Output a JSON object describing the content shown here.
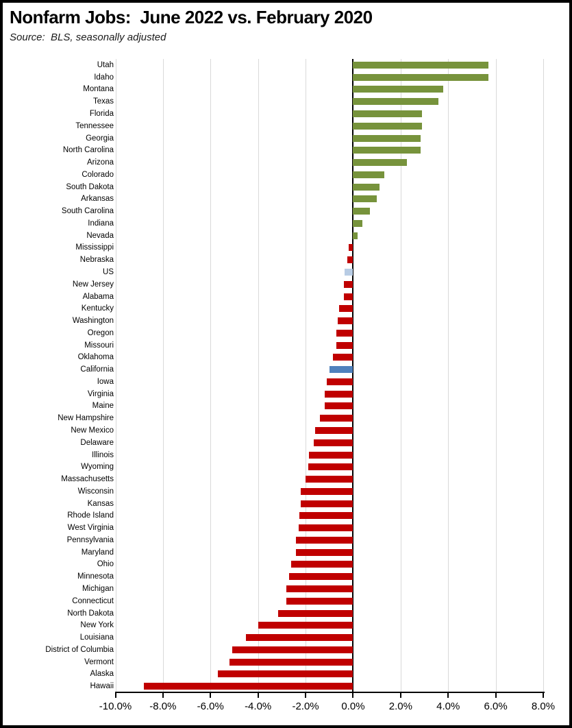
{
  "header": {
    "title": "Nonfarm Jobs:  June 2022 vs. February 2020",
    "source": "Source:  BLS, seasonally adjusted"
  },
  "chart_data": {
    "type": "bar",
    "orientation": "horizontal",
    "title": "Nonfarm Jobs:  June 2022 vs. February 2020",
    "subtitle": "Source:  BLS, seasonally adjusted",
    "value_unit": "percent",
    "xlim": [
      -10,
      8
    ],
    "tick_step": 2,
    "tick_labels": [
      "-10.0%",
      "-8.0%",
      "-6.0%",
      "-4.0%",
      "-2.0%",
      "0.0%",
      "2.0%",
      "4.0%",
      "6.0%",
      "8.0%"
    ],
    "grid": true,
    "legend": false,
    "colors": {
      "positive": "#77933C",
      "negative": "#C00000",
      "us": "#B8CCE4",
      "california": "#4F81BD",
      "gridline": "#D9D9D9",
      "axis": "#000000"
    },
    "bars": [
      {
        "label": "Utah",
        "value": 5.7,
        "role": "positive"
      },
      {
        "label": "Idaho",
        "value": 5.7,
        "role": "positive"
      },
      {
        "label": "Montana",
        "value": 3.8,
        "role": "positive"
      },
      {
        "label": "Texas",
        "value": 3.6,
        "role": "positive"
      },
      {
        "label": "Florida",
        "value": 2.9,
        "role": "positive"
      },
      {
        "label": "Tennessee",
        "value": 2.9,
        "role": "positive"
      },
      {
        "label": "Georgia",
        "value": 2.85,
        "role": "positive"
      },
      {
        "label": "North Carolina",
        "value": 2.85,
        "role": "positive"
      },
      {
        "label": "Arizona",
        "value": 2.25,
        "role": "positive"
      },
      {
        "label": "Colorado",
        "value": 1.3,
        "role": "positive"
      },
      {
        "label": "South Dakota",
        "value": 1.1,
        "role": "positive"
      },
      {
        "label": "Arkansas",
        "value": 1.0,
        "role": "positive"
      },
      {
        "label": "South Carolina",
        "value": 0.7,
        "role": "positive"
      },
      {
        "label": "Indiana",
        "value": 0.4,
        "role": "positive"
      },
      {
        "label": "Nevada",
        "value": 0.2,
        "role": "positive"
      },
      {
        "label": "Mississippi",
        "value": -0.2,
        "role": "negative"
      },
      {
        "label": "Nebraska",
        "value": -0.25,
        "role": "negative"
      },
      {
        "label": "US",
        "value": -0.35,
        "role": "us"
      },
      {
        "label": "New Jersey",
        "value": -0.4,
        "role": "negative"
      },
      {
        "label": "Alabama",
        "value": -0.4,
        "role": "negative"
      },
      {
        "label": "Kentucky",
        "value": -0.6,
        "role": "negative"
      },
      {
        "label": "Washington",
        "value": -0.65,
        "role": "negative"
      },
      {
        "label": "Oregon",
        "value": -0.7,
        "role": "negative"
      },
      {
        "label": "Missouri",
        "value": -0.7,
        "role": "negative"
      },
      {
        "label": "Oklahoma",
        "value": -0.85,
        "role": "negative"
      },
      {
        "label": "California",
        "value": -1.0,
        "role": "california"
      },
      {
        "label": "Iowa",
        "value": -1.1,
        "role": "negative"
      },
      {
        "label": "Virginia",
        "value": -1.2,
        "role": "negative"
      },
      {
        "label": "Maine",
        "value": -1.2,
        "role": "negative"
      },
      {
        "label": "New Hampshire",
        "value": -1.4,
        "role": "negative"
      },
      {
        "label": "New Mexico",
        "value": -1.6,
        "role": "negative"
      },
      {
        "label": "Delaware",
        "value": -1.65,
        "role": "negative"
      },
      {
        "label": "Illinois",
        "value": -1.85,
        "role": "negative"
      },
      {
        "label": "Wyoming",
        "value": -1.9,
        "role": "negative"
      },
      {
        "label": "Massachusetts",
        "value": -2.0,
        "role": "negative"
      },
      {
        "label": "Wisconsin",
        "value": -2.2,
        "role": "negative"
      },
      {
        "label": "Kansas",
        "value": -2.2,
        "role": "negative"
      },
      {
        "label": "Rhode Island",
        "value": -2.25,
        "role": "negative"
      },
      {
        "label": "West Virginia",
        "value": -2.3,
        "role": "negative"
      },
      {
        "label": "Pennsylvania",
        "value": -2.4,
        "role": "negative"
      },
      {
        "label": "Maryland",
        "value": -2.4,
        "role": "negative"
      },
      {
        "label": "Ohio",
        "value": -2.6,
        "role": "negative"
      },
      {
        "label": "Minnesota",
        "value": -2.7,
        "role": "negative"
      },
      {
        "label": "Michigan",
        "value": -2.8,
        "role": "negative"
      },
      {
        "label": "Connecticut",
        "value": -2.8,
        "role": "negative"
      },
      {
        "label": "North Dakota",
        "value": -3.15,
        "role": "negative"
      },
      {
        "label": "New York",
        "value": -4.0,
        "role": "negative"
      },
      {
        "label": "Louisiana",
        "value": -4.5,
        "role": "negative"
      },
      {
        "label": "District of Columbia",
        "value": -5.1,
        "role": "negative"
      },
      {
        "label": "Vermont",
        "value": -5.2,
        "role": "negative"
      },
      {
        "label": "Alaska",
        "value": -5.7,
        "role": "negative"
      },
      {
        "label": "Hawaii",
        "value": -8.8,
        "role": "negative"
      }
    ]
  }
}
